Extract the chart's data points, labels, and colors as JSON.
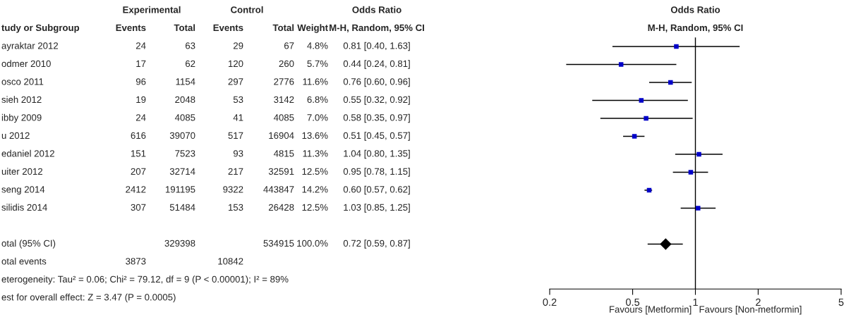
{
  "chart_data": [
    {
      "type": "heatmap",
      "ylabel": "tudy or Subgroup",
      "categories": [
        "Events",
        "Total",
        "Events",
        "Total",
        "Weight",
        "M-H, Random, 95% CI"
      ],
      "y_categories": [
        "ayraktar 2012",
        "odmer 2010",
        "osco 2011",
        "sieh 2012",
        "ibby 2009",
        "u 2012",
        "edaniel 2012",
        "uiter 2012",
        "seng 2014",
        "silidis 2014"
      ],
      "cells": [
        [
          null,
          null,
          null,
          null,
          null,
          null
        ],
        [
          null,
          null,
          null,
          null,
          null,
          null
        ],
        [
          null,
          null,
          null,
          null,
          null,
          null
        ],
        [
          null,
          null,
          null,
          null,
          null,
          null
        ],
        [
          null,
          null,
          null,
          null,
          null,
          null
        ],
        [
          null,
          null,
          null,
          null,
          null,
          null
        ],
        [
          null,
          null,
          null,
          null,
          null,
          null
        ],
        [
          null,
          null,
          null,
          null,
          null,
          null
        ],
        [
          null,
          null,
          null,
          null,
          null,
          null
        ],
        [
          null,
          null,
          null,
          null,
          null,
          null
        ]
      ],
      "cell_labels": [
        [
          "24",
          "63",
          "29",
          "67",
          "4.8%",
          "0.81 [0.40, 1.63]"
        ],
        [
          "17",
          "62",
          "120",
          "260",
          "5.7%",
          "0.44 [0.24, 0.81]"
        ],
        [
          "96",
          "1154",
          "297",
          "2776",
          "11.6%",
          "0.76 [0.60, 0.96]"
        ],
        [
          "19",
          "2048",
          "53",
          "3142",
          "6.8%",
          "0.55 [0.32, 0.92]"
        ],
        [
          "24",
          "4085",
          "41",
          "4085",
          "7.0%",
          "0.58 [0.35, 0.97]"
        ],
        [
          "616",
          "39070",
          "517",
          "16904",
          "13.6%",
          "0.51 [0.45, 0.57]"
        ],
        [
          "151",
          "7523",
          "93",
          "4815",
          "11.3%",
          "1.04 [0.80, 1.35]"
        ],
        [
          "207",
          "32714",
          "217",
          "32591",
          "12.5%",
          "0.95 [0.78, 1.15]"
        ],
        [
          "2412",
          "191195",
          "9322",
          "443847",
          "14.2%",
          "0.60 [0.57, 0.62]"
        ],
        [
          "307",
          "51484",
          "153",
          "26428",
          "12.5%",
          "1.03 [0.85, 1.25]"
        ]
      ],
      "annotations": [
        "Experimental",
        "Control",
        "Odds Ratio"
      ]
    },
    {
      "type": "heatmap",
      "tick_labels": false,
      "categories": [
        null,
        null,
        null,
        null,
        null,
        null
      ],
      "y_categories": [
        "otal (95% CI)",
        "otal events"
      ],
      "cells": [
        [
          null,
          null,
          null,
          null,
          null,
          null
        ],
        [
          null,
          null,
          null,
          null,
          null,
          null
        ]
      ],
      "cell_labels": [
        [
          null,
          "329398",
          null,
          "534915",
          "100.0%",
          "0.72 [0.59, 0.87]"
        ],
        [
          "3873",
          null,
          "10842",
          null,
          null,
          null
        ]
      ],
      "annotations": [
        "eterogeneity: Tau² = 0.06; Chi² = 79.12, df = 9 (P < 0.00001); I² = 89%",
        "est for overall effect: Z = 3.47 (P = 0.0005)"
      ]
    },
    {
      "type": "scatter",
      "title": "Odds Ratio",
      "subtitle": "M-H, Random, 95% CI",
      "orientation": "horizontal",
      "categories": [
        null,
        null,
        null,
        null,
        null,
        null,
        null,
        null,
        null,
        null,
        null,
        null,
        null,
        null
      ],
      "series": [
        {
          "color": "#0000c8",
          "marker": "square",
          "values": [
            0.81,
            0.44,
            0.76,
            0.55,
            0.58,
            0.51,
            1.04,
            0.95,
            0.6,
            1.03,
            null,
            null,
            null,
            null
          ],
          "errors": [
            [
              0.4,
              1.63
            ],
            [
              0.24,
              0.81
            ],
            [
              0.6,
              0.96
            ],
            [
              0.32,
              0.92
            ],
            [
              0.35,
              0.97
            ],
            [
              0.45,
              0.57
            ],
            [
              0.8,
              1.35
            ],
            [
              0.78,
              1.15
            ],
            [
              0.57,
              0.62
            ],
            [
              0.85,
              1.25
            ],
            null,
            null,
            null,
            null
          ]
        },
        {
          "color": "#000000",
          "marker": "diamond",
          "values": [
            null,
            null,
            null,
            null,
            null,
            null,
            null,
            null,
            null,
            null,
            null,
            0.72,
            null,
            null
          ],
          "errors": [
            null,
            null,
            null,
            null,
            null,
            null,
            null,
            null,
            null,
            null,
            null,
            [
              0.59,
              0.87
            ],
            null,
            null
          ]
        }
      ],
      "log": "x",
      "xlim": [
        0.2,
        5
      ],
      "xticks": [
        0.2,
        0.5,
        1,
        2,
        5
      ],
      "tick_labels": "x",
      "ref_lines": [
        {
          "axis": "x",
          "value": 1,
          "color": "#000000"
        }
      ],
      "annotations": [
        "Favours [Metformin]",
        "Favours [Non-metformin]"
      ]
    }
  ]
}
